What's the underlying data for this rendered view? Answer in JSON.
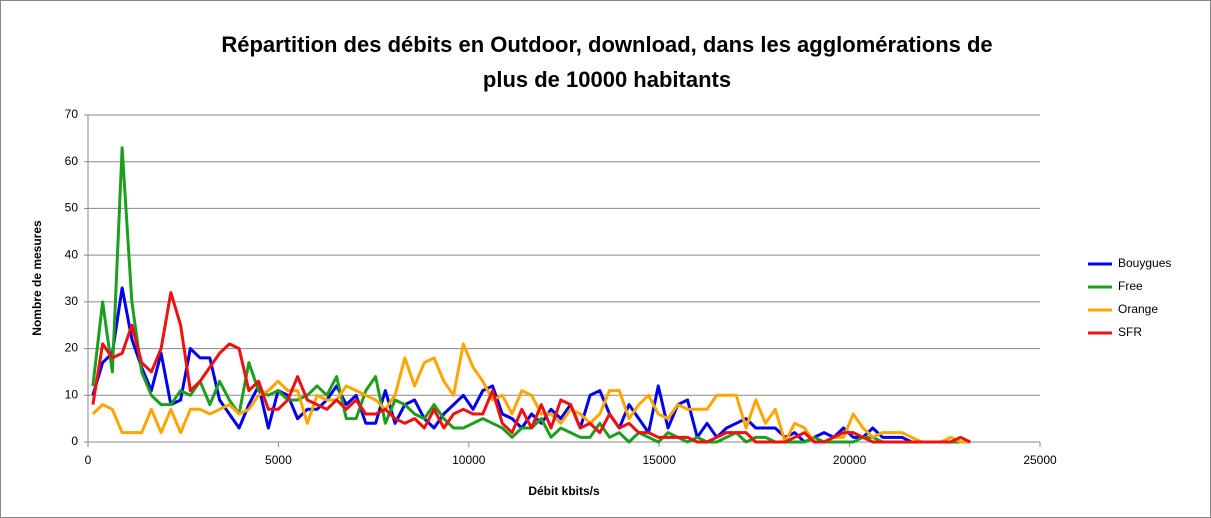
{
  "chart_data": {
    "type": "line",
    "title": [
      "Répartition des débits en Outdoor, download,  dans les agglomérations de",
      "plus de 10000 habitants"
    ],
    "xlabel": "Débit kbits/s",
    "ylabel": "Nombre de mesures",
    "x": [
      128,
      384,
      640,
      896,
      1152,
      1408,
      1664,
      1920,
      2176,
      2432,
      2688,
      2944,
      3200,
      3456,
      3712,
      3968,
      4224,
      4480,
      4736,
      4992,
      5248,
      5504,
      5760,
      6016,
      6272,
      6528,
      6784,
      7040,
      7296,
      7552,
      7808,
      8064,
      8320,
      8576,
      8832,
      9088,
      9344,
      9600,
      9856,
      10112,
      10368,
      10624,
      10880,
      11136,
      11392,
      11648,
      11904,
      12160,
      12416,
      12672,
      12928,
      13184,
      13440,
      13696,
      13952,
      14208,
      14464,
      14720,
      14976,
      15232,
      15488,
      15744,
      16000,
      16256,
      16512,
      16768,
      17024,
      17280,
      17536,
      17792,
      18048,
      18304,
      18560,
      18816,
      19072,
      19328,
      19584,
      19840,
      20096,
      20352,
      20608,
      20864,
      21120,
      21376,
      21632,
      21888,
      22144,
      22400,
      22656,
      22912,
      23168
    ],
    "series": [
      {
        "name": "Bouygues",
        "color": "#0000ee",
        "values": [
          10,
          17,
          19,
          33,
          22,
          16,
          11,
          19,
          8,
          9,
          20,
          18,
          18,
          9,
          6,
          3,
          8,
          12,
          3,
          11,
          10,
          5,
          7,
          7,
          9,
          12,
          8,
          10,
          4,
          4,
          11,
          4,
          8,
          9,
          5,
          3,
          6,
          8,
          10,
          7,
          11,
          12,
          6,
          5,
          3,
          6,
          4,
          7,
          5,
          8,
          3,
          10,
          11,
          6,
          3,
          8,
          5,
          2,
          12,
          3,
          8,
          9,
          1,
          4,
          1,
          3,
          4,
          5,
          3,
          3,
          3,
          1,
          2,
          0,
          1,
          2,
          1,
          3,
          1,
          1,
          3,
          1,
          1,
          1,
          0,
          0,
          0,
          0,
          0,
          0,
          0
        ]
      },
      {
        "name": "Free",
        "color": "#1e9e1e",
        "values": [
          12,
          30,
          15,
          63,
          30,
          15,
          10,
          8,
          8,
          11,
          10,
          13,
          8,
          13,
          9,
          6,
          17,
          11,
          10,
          11,
          9,
          9,
          10,
          12,
          10,
          14,
          5,
          5,
          11,
          14,
          4,
          9,
          8,
          6,
          5,
          8,
          5,
          3,
          3,
          4,
          5,
          4,
          3,
          1,
          3,
          3,
          5,
          1,
          3,
          2,
          1,
          1,
          4,
          1,
          2,
          0,
          2,
          1,
          0,
          2,
          1,
          0,
          1,
          0,
          0,
          1,
          2,
          0,
          1,
          1,
          0,
          0,
          0,
          0,
          1,
          0,
          0,
          0,
          0,
          1,
          1,
          0,
          0,
          0,
          0,
          0,
          0,
          0,
          0,
          0,
          0
        ]
      },
      {
        "name": "Orange",
        "color": "#ffa500",
        "values": [
          6,
          8,
          7,
          2,
          2,
          2,
          7,
          2,
          7,
          2,
          7,
          7,
          6,
          7,
          8,
          6,
          7,
          10,
          11,
          13,
          11,
          11,
          4,
          10,
          9,
          9,
          12,
          11,
          10,
          9,
          7,
          10,
          18,
          12,
          17,
          18,
          13,
          10,
          21,
          16,
          13,
          9,
          10,
          6,
          11,
          10,
          6,
          6,
          4,
          7,
          6,
          4,
          6,
          11,
          11,
          5,
          8,
          10,
          6,
          5,
          8,
          7,
          7,
          7,
          10,
          10,
          10,
          3,
          9,
          4,
          7,
          0,
          4,
          3,
          0,
          0,
          1,
          1,
          6,
          3,
          1,
          2,
          2,
          2,
          1,
          0,
          0,
          0,
          1,
          0,
          0
        ]
      },
      {
        "name": "SFR",
        "color": "#ee1111",
        "values": [
          8,
          21,
          18,
          19,
          25,
          17,
          15,
          20,
          32,
          25,
          11,
          13,
          16,
          19,
          21,
          20,
          11,
          13,
          7,
          7,
          9,
          14,
          9,
          8,
          7,
          9,
          7,
          9,
          6,
          6,
          7,
          5,
          4,
          5,
          3,
          7,
          3,
          6,
          7,
          6,
          6,
          11,
          4,
          2,
          7,
          3,
          8,
          3,
          9,
          8,
          3,
          4,
          2,
          6,
          3,
          4,
          2,
          2,
          1,
          1,
          1,
          1,
          0,
          0,
          1,
          2,
          2,
          2,
          0,
          0,
          0,
          0,
          1,
          2,
          0,
          0,
          1,
          2,
          2,
          1,
          0,
          0,
          0,
          0,
          0,
          0,
          0,
          0,
          0,
          1,
          0
        ]
      }
    ],
    "xlim": [
      0,
      25000
    ],
    "xticks": [
      0,
      5000,
      10000,
      15000,
      20000,
      25000
    ],
    "ylim": [
      0,
      70
    ],
    "yticks": [
      0,
      10,
      20,
      30,
      40,
      50,
      60,
      70
    ],
    "grid": true,
    "legend": "right"
  }
}
